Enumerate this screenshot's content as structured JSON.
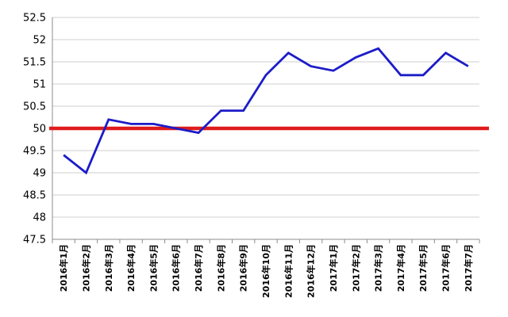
{
  "chart_data": {
    "type": "line",
    "categories": [
      "2016年1月",
      "2016年2月",
      "2016年3月",
      "2016年4月",
      "2016年5月",
      "2016年6月",
      "2016年7月",
      "2016年8月",
      "2016年9月",
      "2016年10月",
      "2016年11月",
      "2016年12月",
      "2017年1月",
      "2017年2月",
      "2017年3月",
      "2017年4月",
      "2017年5月",
      "2017年6月",
      "2017年7月"
    ],
    "series": [
      {
        "color": "#1c1cc8",
        "values": [
          49.4,
          49.0,
          50.2,
          50.1,
          50.1,
          50.0,
          49.9,
          50.4,
          50.4,
          51.2,
          51.7,
          51.4,
          51.3,
          51.6,
          51.8,
          51.2,
          51.2,
          51.7,
          51.4
        ]
      }
    ],
    "reference_line": {
      "value": 50,
      "color": "#e01b1b"
    },
    "ylim": [
      47.5,
      52.5
    ],
    "yticks": [
      "47.5",
      "48",
      "48.5",
      "49",
      "49.5",
      "50",
      "50.5",
      "51",
      "51.5",
      "52",
      "52.5"
    ],
    "grid": true,
    "legend": "none"
  }
}
